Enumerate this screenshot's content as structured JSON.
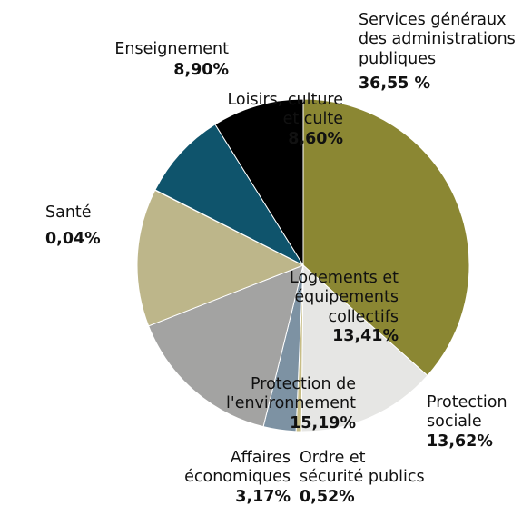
{
  "chart_data": {
    "type": "pie",
    "title": "",
    "slices": [
      {
        "name_lines": [
          "Services généraux",
          "des administrations",
          "publiques"
        ],
        "value_label": "36,55 %",
        "value": 36.55,
        "color": "#8b8733"
      },
      {
        "name_lines": [
          "Protection",
          "sociale"
        ],
        "value_label": "13,62%",
        "value": 13.62,
        "color": "#e6e6e4"
      },
      {
        "name_lines": [
          "Ordre et",
          "sécurité publics"
        ],
        "value_label": "0,52%",
        "value": 0.52,
        "color": "#c7bd86"
      },
      {
        "name_lines": [
          "Affaires",
          "économiques"
        ],
        "value_label": "3,17%",
        "value": 3.17,
        "color": "#7d92a3"
      },
      {
        "name_lines": [
          "Protection de",
          "l'environnement"
        ],
        "value_label": "15,19%",
        "value": 15.19,
        "color": "#a3a3a2"
      },
      {
        "name_lines": [
          "Logements et",
          "équipements",
          "collectifs"
        ],
        "value_label": "13,41%",
        "value": 13.41,
        "color": "#bdb68a"
      },
      {
        "name_lines": [
          "Santé"
        ],
        "value_label": "0,04%",
        "value": 0.04,
        "color": "#c9c9c9"
      },
      {
        "name_lines": [
          "Loisirs, culture",
          "et culte"
        ],
        "value_label": "8,60%",
        "value": 8.6,
        "color": "#0f546c"
      },
      {
        "name_lines": [
          "Enseignement"
        ],
        "value_label": "8,90%",
        "value": 8.9,
        "color": "#000000"
      }
    ]
  }
}
